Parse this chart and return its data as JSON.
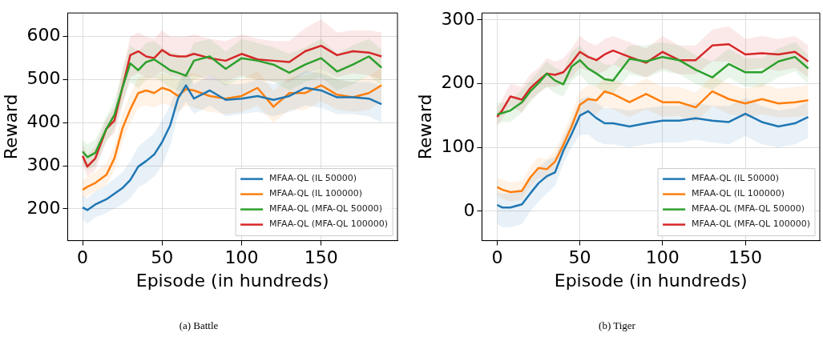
{
  "chart_data": [
    {
      "type": "line",
      "title": "(a) Battle",
      "xlabel": "Episode (in hundreds)",
      "ylabel": "Reward",
      "x": [
        0,
        3,
        8,
        15,
        20,
        25,
        30,
        35,
        40,
        45,
        50,
        55,
        60,
        65,
        70,
        80,
        90,
        100,
        110,
        120,
        130,
        140,
        150,
        160,
        170,
        180,
        188
      ],
      "xlim": [
        -9.4,
        198
      ],
      "xticks": [
        0,
        50,
        100,
        150
      ],
      "ylim": [
        126,
        655
      ],
      "yticks": [
        200,
        300,
        400,
        500,
        600
      ],
      "grid": true,
      "legend": "bottom right",
      "marker": "none",
      "line_style": "solid",
      "series": [
        {
          "name": "MFAA-QL (IL 50000)",
          "color": "#1f77b4",
          "values": [
            203,
            197,
            210,
            222,
            235,
            248,
            267,
            298,
            311,
            326,
            355,
            393,
            456,
            487,
            456,
            475,
            453,
            456,
            462,
            453,
            462,
            481,
            475,
            459,
            459,
            456,
            443
          ],
          "lower": [
            175,
            165,
            180,
            190,
            200,
            210,
            225,
            250,
            260,
            275,
            300,
            345,
            420,
            450,
            420,
            440,
            415,
            420,
            425,
            415,
            425,
            440,
            435,
            420,
            420,
            415,
            400
          ],
          "upper": [
            230,
            225,
            240,
            255,
            270,
            285,
            310,
            345,
            360,
            375,
            405,
            440,
            490,
            520,
            490,
            510,
            490,
            490,
            500,
            490,
            500,
            520,
            515,
            500,
            495,
            495,
            485
          ]
        },
        {
          "name": "MFAA-QL (IL 100000)",
          "color": "#ff7f0e",
          "values": [
            244,
            251,
            260,
            279,
            317,
            386,
            431,
            469,
            475,
            469,
            481,
            475,
            462,
            478,
            475,
            462,
            456,
            462,
            481,
            437,
            469,
            469,
            487,
            465,
            459,
            469,
            487
          ],
          "lower": [
            225,
            230,
            240,
            255,
            290,
            355,
            400,
            435,
            440,
            435,
            445,
            440,
            425,
            440,
            435,
            425,
            420,
            425,
            440,
            400,
            430,
            430,
            450,
            430,
            425,
            430,
            450
          ],
          "upper": [
            265,
            275,
            285,
            305,
            345,
            420,
            465,
            505,
            510,
            505,
            515,
            510,
            500,
            515,
            515,
            500,
            495,
            500,
            520,
            475,
            505,
            510,
            525,
            500,
            495,
            510,
            525
          ]
        },
        {
          "name": "MFAA-QL (MFA-QL 50000)",
          "color": "#2ca02c",
          "values": [
            333,
            320,
            330,
            386,
            418,
            481,
            538,
            522,
            541,
            547,
            535,
            522,
            516,
            509,
            544,
            554,
            525,
            550,
            544,
            535,
            516,
            535,
            550,
            519,
            535,
            554,
            528
          ],
          "lower": [
            305,
            290,
            300,
            355,
            385,
            445,
            495,
            480,
            500,
            505,
            495,
            480,
            475,
            470,
            500,
            510,
            485,
            505,
            500,
            495,
            475,
            495,
            505,
            475,
            490,
            510,
            485
          ],
          "upper": [
            360,
            350,
            360,
            415,
            450,
            520,
            580,
            565,
            585,
            590,
            575,
            565,
            560,
            550,
            585,
            595,
            565,
            595,
            585,
            575,
            560,
            575,
            595,
            560,
            580,
            595,
            570
          ]
        },
        {
          "name": "MFAA-QL (MFA-QL 100000)",
          "color": "#d62728",
          "values": [
            323,
            298,
            317,
            386,
            405,
            481,
            557,
            566,
            554,
            550,
            569,
            557,
            554,
            554,
            560,
            550,
            544,
            560,
            547,
            544,
            541,
            566,
            579,
            557,
            566,
            563,
            554
          ],
          "lower": [
            300,
            275,
            290,
            360,
            375,
            440,
            505,
            515,
            505,
            505,
            520,
            510,
            505,
            505,
            510,
            500,
            495,
            510,
            500,
            495,
            495,
            515,
            525,
            505,
            515,
            510,
            500
          ],
          "upper": [
            350,
            325,
            345,
            410,
            435,
            520,
            600,
            610,
            600,
            595,
            615,
            600,
            600,
            600,
            605,
            595,
            590,
            605,
            595,
            590,
            590,
            620,
            640,
            610,
            615,
            615,
            610
          ]
        }
      ]
    },
    {
      "type": "line",
      "title": "(b) Tiger",
      "xlabel": "Episode (in hundreds)",
      "ylabel": "Reward",
      "x": [
        0,
        3,
        8,
        15,
        20,
        25,
        30,
        35,
        40,
        45,
        50,
        55,
        60,
        65,
        70,
        80,
        90,
        100,
        110,
        120,
        130,
        140,
        150,
        160,
        170,
        180,
        188
      ],
      "xlim": [
        -9.2,
        195
      ],
      "xticks": [
        0,
        50,
        100,
        150
      ],
      "ylim": [
        -46,
        311
      ],
      "yticks": [
        0,
        100,
        200,
        300
      ],
      "grid": true,
      "legend": "bottom right",
      "marker": "none",
      "line_style": "solid",
      "series": [
        {
          "name": "MFAA-QL (IL 50000)",
          "color": "#1f77b4",
          "values": [
            10,
            6,
            6,
            11,
            28,
            44,
            55,
            61,
            95,
            121,
            150,
            157,
            146,
            138,
            138,
            133,
            138,
            142,
            142,
            146,
            142,
            140,
            153,
            140,
            133,
            138,
            148
          ],
          "lower": [
            -20,
            -25,
            -25,
            -20,
            0,
            15,
            28,
            40,
            75,
            100,
            120,
            120,
            110,
            105,
            105,
            100,
            105,
            108,
            108,
            112,
            108,
            105,
            118,
            105,
            100,
            105,
            115
          ],
          "upper": [
            30,
            28,
            28,
            35,
            50,
            68,
            80,
            85,
            115,
            142,
            175,
            180,
            170,
            162,
            162,
            158,
            162,
            165,
            165,
            170,
            165,
            165,
            178,
            165,
            158,
            162,
            172
          ]
        },
        {
          "name": "MFAA-QL (IL 100000)",
          "color": "#ff7f0e",
          "values": [
            38,
            34,
            30,
            32,
            53,
            68,
            66,
            78,
            104,
            133,
            167,
            176,
            174,
            188,
            184,
            171,
            184,
            171,
            171,
            163,
            188,
            176,
            169,
            176,
            169,
            171,
            174
          ],
          "lower": [
            25,
            20,
            15,
            18,
            38,
            52,
            50,
            62,
            88,
            115,
            148,
            155,
            152,
            165,
            160,
            148,
            160,
            148,
            150,
            140,
            165,
            152,
            147,
            152,
            147,
            148,
            150
          ],
          "upper": [
            52,
            50,
            45,
            48,
            70,
            85,
            82,
            95,
            122,
            152,
            188,
            198,
            196,
            210,
            208,
            195,
            208,
            195,
            195,
            186,
            212,
            200,
            192,
            200,
            192,
            195,
            198
          ]
        },
        {
          "name": "MFAA-QL (MFA-QL 50000)",
          "color": "#2ca02c",
          "values": [
            152,
            154,
            158,
            171,
            188,
            201,
            216,
            205,
            199,
            227,
            237,
            224,
            216,
            207,
            205,
            239,
            235,
            242,
            237,
            222,
            210,
            231,
            218,
            218,
            235,
            242,
            224
          ],
          "lower": [
            135,
            140,
            140,
            155,
            170,
            185,
            195,
            185,
            180,
            205,
            215,
            200,
            195,
            185,
            185,
            215,
            210,
            220,
            215,
            200,
            190,
            210,
            195,
            195,
            210,
            220,
            200
          ],
          "upper": [
            170,
            170,
            175,
            190,
            205,
            220,
            235,
            225,
            220,
            250,
            260,
            245,
            240,
            230,
            230,
            260,
            260,
            265,
            260,
            245,
            235,
            255,
            240,
            240,
            255,
            265,
            245
          ]
        },
        {
          "name": "MFAA-QL (MFA-QL 100000)",
          "color": "#d62728",
          "values": [
            148,
            158,
            180,
            175,
            193,
            205,
            216,
            214,
            218,
            233,
            250,
            242,
            237,
            246,
            252,
            242,
            233,
            250,
            237,
            237,
            260,
            262,
            246,
            248,
            246,
            250,
            235
          ],
          "lower": [
            135,
            145,
            165,
            155,
            175,
            185,
            195,
            195,
            200,
            210,
            225,
            220,
            215,
            220,
            230,
            220,
            210,
            225,
            215,
            215,
            235,
            235,
            220,
            225,
            220,
            225,
            210
          ],
          "upper": [
            162,
            175,
            200,
            195,
            215,
            225,
            240,
            235,
            240,
            255,
            275,
            265,
            260,
            270,
            275,
            265,
            255,
            275,
            260,
            260,
            285,
            290,
            270,
            275,
            270,
            275,
            260
          ]
        }
      ]
    }
  ]
}
